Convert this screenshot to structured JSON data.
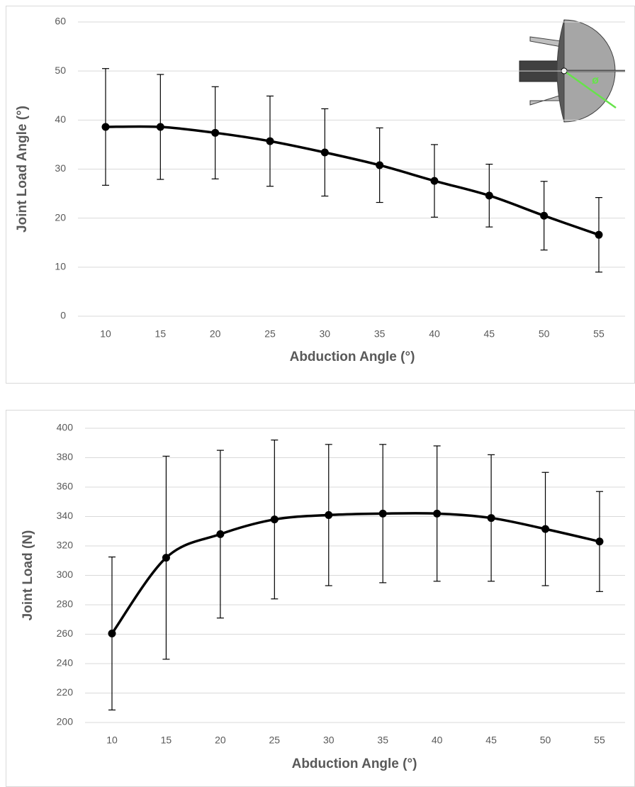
{
  "chart_data": [
    {
      "type": "line",
      "x_label": "Abduction Angle (°)",
      "y_label": "Joint Load Angle (°)",
      "categories": [
        10,
        15,
        20,
        25,
        30,
        35,
        40,
        45,
        50,
        55
      ],
      "values": [
        38.6,
        38.6,
        37.4,
        35.7,
        33.4,
        30.8,
        27.6,
        24.6,
        20.5,
        16.6
      ],
      "errors": [
        11.9,
        10.7,
        9.4,
        9.2,
        8.9,
        7.6,
        7.4,
        6.4,
        7.0,
        7.6
      ],
      "color": "#000000",
      "ylim": [
        0,
        60
      ],
      "yticks": [
        0,
        10,
        20,
        30,
        40,
        50,
        60
      ],
      "grid": true,
      "inset_label": "ø"
    },
    {
      "type": "line",
      "x_label": "Abduction Angle (°)",
      "y_label": "Joint Load  (N)",
      "categories": [
        10,
        15,
        20,
        25,
        30,
        35,
        40,
        45,
        50,
        55
      ],
      "values": [
        260.5,
        312,
        328,
        338,
        341,
        342,
        342,
        339,
        331.5,
        323
      ],
      "errors": [
        52,
        69,
        57,
        54,
        48,
        47,
        46,
        43,
        38.5,
        34
      ],
      "color": "#000000",
      "ylim": [
        200,
        400
      ],
      "yticks": [
        200,
        220,
        240,
        260,
        280,
        300,
        320,
        340,
        360,
        380,
        400
      ],
      "grid": true
    }
  ]
}
